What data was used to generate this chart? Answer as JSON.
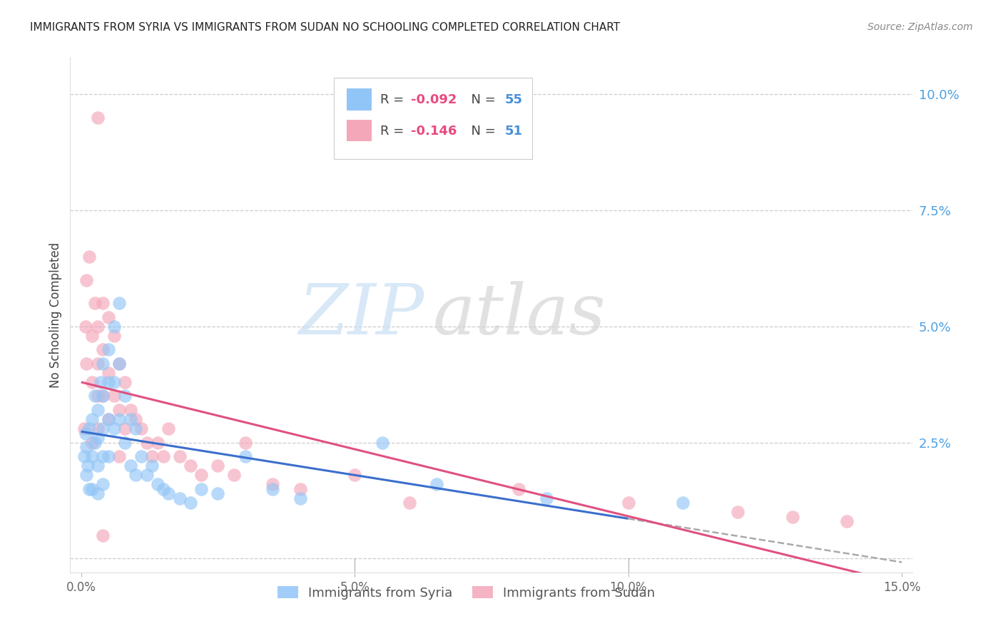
{
  "title": "IMMIGRANTS FROM SYRIA VS IMMIGRANTS FROM SUDAN NO SCHOOLING COMPLETED CORRELATION CHART",
  "source": "Source: ZipAtlas.com",
  "ylabel": "No Schooling Completed",
  "xlim": [
    0.0,
    0.15
  ],
  "ylim": [
    -0.003,
    0.108
  ],
  "yticks": [
    0.0,
    0.025,
    0.05,
    0.075,
    0.1
  ],
  "ytick_labels": [
    "",
    "2.5%",
    "5.0%",
    "7.5%",
    "10.0%"
  ],
  "xticks": [
    0.0,
    0.05,
    0.1,
    0.15
  ],
  "xtick_labels": [
    "0.0%",
    "5.0%",
    "10.0%",
    "15.0%"
  ],
  "syria_color": "#92c5f7",
  "sudan_color": "#f4a7b9",
  "syria_R": -0.092,
  "syria_N": 55,
  "sudan_R": -0.146,
  "sudan_N": 51,
  "watermark_zip": "ZIP",
  "watermark_atlas": "atlas",
  "legend_label_syria": "Immigrants from Syria",
  "legend_label_sudan": "Immigrants from Sudan",
  "syria_scatter_x": [
    0.0005,
    0.0008,
    0.001,
    0.001,
    0.0012,
    0.0015,
    0.0015,
    0.002,
    0.002,
    0.002,
    0.0025,
    0.0025,
    0.003,
    0.003,
    0.003,
    0.003,
    0.0035,
    0.004,
    0.004,
    0.004,
    0.004,
    0.004,
    0.005,
    0.005,
    0.005,
    0.005,
    0.006,
    0.006,
    0.006,
    0.007,
    0.007,
    0.007,
    0.008,
    0.008,
    0.009,
    0.009,
    0.01,
    0.01,
    0.011,
    0.012,
    0.013,
    0.014,
    0.015,
    0.016,
    0.018,
    0.02,
    0.022,
    0.025,
    0.03,
    0.035,
    0.04,
    0.055,
    0.065,
    0.085,
    0.11
  ],
  "syria_scatter_y": [
    0.022,
    0.027,
    0.018,
    0.024,
    0.02,
    0.028,
    0.015,
    0.03,
    0.022,
    0.015,
    0.035,
    0.025,
    0.032,
    0.026,
    0.02,
    0.014,
    0.038,
    0.042,
    0.035,
    0.028,
    0.022,
    0.016,
    0.045,
    0.038,
    0.03,
    0.022,
    0.05,
    0.038,
    0.028,
    0.055,
    0.042,
    0.03,
    0.035,
    0.025,
    0.03,
    0.02,
    0.028,
    0.018,
    0.022,
    0.018,
    0.02,
    0.016,
    0.015,
    0.014,
    0.013,
    0.012,
    0.015,
    0.014,
    0.022,
    0.015,
    0.013,
    0.025,
    0.016,
    0.013,
    0.012
  ],
  "sudan_scatter_x": [
    0.0005,
    0.0008,
    0.001,
    0.001,
    0.0015,
    0.002,
    0.002,
    0.002,
    0.0025,
    0.003,
    0.003,
    0.003,
    0.003,
    0.004,
    0.004,
    0.004,
    0.005,
    0.005,
    0.005,
    0.006,
    0.006,
    0.007,
    0.007,
    0.008,
    0.008,
    0.009,
    0.01,
    0.011,
    0.012,
    0.013,
    0.014,
    0.015,
    0.016,
    0.018,
    0.02,
    0.022,
    0.025,
    0.028,
    0.03,
    0.035,
    0.04,
    0.05,
    0.06,
    0.08,
    0.1,
    0.12,
    0.13,
    0.14,
    0.003,
    0.004,
    0.007
  ],
  "sudan_scatter_y": [
    0.028,
    0.05,
    0.042,
    0.06,
    0.065,
    0.048,
    0.038,
    0.025,
    0.055,
    0.05,
    0.042,
    0.035,
    0.028,
    0.055,
    0.045,
    0.035,
    0.052,
    0.04,
    0.03,
    0.048,
    0.035,
    0.042,
    0.032,
    0.038,
    0.028,
    0.032,
    0.03,
    0.028,
    0.025,
    0.022,
    0.025,
    0.022,
    0.028,
    0.022,
    0.02,
    0.018,
    0.02,
    0.018,
    0.025,
    0.016,
    0.015,
    0.018,
    0.012,
    0.015,
    0.012,
    0.01,
    0.009,
    0.008,
    0.095,
    0.005,
    0.022
  ]
}
